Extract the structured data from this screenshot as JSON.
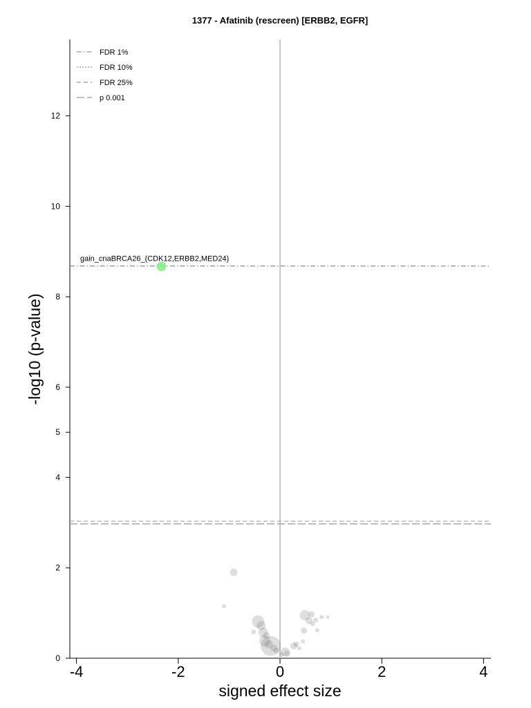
{
  "chart_data": {
    "type": "scatter",
    "title": "1377 - Afatinib (rescreen) [ERBB2, EGFR]",
    "xlabel": "signed effect size",
    "ylabel": "-log10 (p-value)",
    "xlim": [
      -4.15,
      4.15
    ],
    "ylim": [
      0,
      13.7
    ],
    "y_scale": "piecewise: linear 0-4 and 6-13.7, compressed 4-6",
    "x_ticks": [
      "-4",
      "-2",
      "0",
      "2",
      "4"
    ],
    "x_tick_values": [
      -4,
      -2,
      0,
      2,
      4
    ],
    "y_ticks": [
      "0",
      "2",
      "4",
      "5",
      "6",
      "8",
      "10",
      "12"
    ],
    "y_tick_values": [
      0,
      2,
      4,
      5,
      6,
      8,
      10,
      12
    ],
    "zero_line": true,
    "grid": false,
    "legend": {
      "placement": "top-left",
      "entries": [
        {
          "label": "FDR 1%",
          "dash": "dashdot"
        },
        {
          "label": "FDR 10%",
          "dash": "dotted"
        },
        {
          "label": "FDR 25%",
          "dash": "dashed"
        },
        {
          "label": "p 0.001",
          "dash": "longdash"
        }
      ]
    },
    "threshold_lines": [
      {
        "name": "FDR 1%",
        "y": 8.68,
        "dash": "dashdot",
        "color": "#8a8a8a"
      },
      {
        "name": "FDR 25%",
        "y": 3.03,
        "dash": "dashed",
        "color": "#aaaaaa"
      },
      {
        "name": "p 0.001",
        "y": 2.97,
        "dash": "longdash",
        "color": "#999999"
      }
    ],
    "highlight": {
      "label": "gain_cnaBRCA26_(CDK12,ERBB2,MED24)",
      "x": -2.33,
      "y": 8.67,
      "size": 1.4,
      "color": "#7fef7f"
    },
    "points": [
      {
        "x": -0.91,
        "y": 1.9,
        "size": 1.1
      },
      {
        "x": -1.1,
        "y": 1.15,
        "size": 0.6
      },
      {
        "x": -0.43,
        "y": 0.81,
        "size": 1.8
      },
      {
        "x": -0.37,
        "y": 0.72,
        "size": 1.3
      },
      {
        "x": -0.52,
        "y": 0.58,
        "size": 0.7
      },
      {
        "x": -0.33,
        "y": 0.57,
        "size": 1.4
      },
      {
        "x": -0.27,
        "y": 0.5,
        "size": 1.0
      },
      {
        "x": -0.3,
        "y": 0.38,
        "size": 1.6
      },
      {
        "x": -0.22,
        "y": 0.31,
        "size": 1.2
      },
      {
        "x": -0.18,
        "y": 0.27,
        "size": 2.9
      },
      {
        "x": -0.12,
        "y": 0.22,
        "size": 1.0
      },
      {
        "x": -0.07,
        "y": 0.17,
        "size": 0.8
      },
      {
        "x": 0.03,
        "y": 0.08,
        "size": 0.7
      },
      {
        "x": 0.1,
        "y": 0.14,
        "size": 1.3
      },
      {
        "x": 0.14,
        "y": 0.1,
        "size": 0.9
      },
      {
        "x": 0.27,
        "y": 0.27,
        "size": 1.0
      },
      {
        "x": 0.32,
        "y": 0.31,
        "size": 0.8
      },
      {
        "x": 0.45,
        "y": 0.37,
        "size": 0.6
      },
      {
        "x": 0.38,
        "y": 0.22,
        "size": 0.6
      },
      {
        "x": 0.47,
        "y": 0.61,
        "size": 0.9
      },
      {
        "x": 0.49,
        "y": 0.95,
        "size": 1.5
      },
      {
        "x": 0.57,
        "y": 0.83,
        "size": 1.0
      },
      {
        "x": 0.62,
        "y": 0.97,
        "size": 0.9
      },
      {
        "x": 0.64,
        "y": 0.76,
        "size": 0.7
      },
      {
        "x": 0.7,
        "y": 0.84,
        "size": 0.7
      },
      {
        "x": 0.73,
        "y": 0.62,
        "size": 0.6
      },
      {
        "x": 0.82,
        "y": 0.91,
        "size": 0.6
      },
      {
        "x": 0.94,
        "y": 0.91,
        "size": 0.5
      }
    ],
    "point_color": "#808080"
  }
}
